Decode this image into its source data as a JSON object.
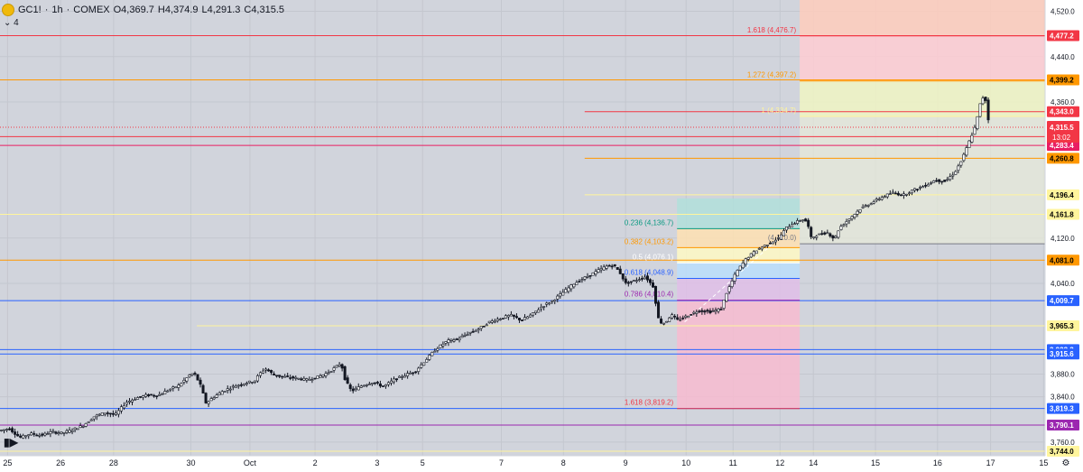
{
  "header": {
    "symbol": "GC1!",
    "interval": "1h",
    "exchange": "COMEX",
    "open": "O4,369.7",
    "high": "H4,374.9",
    "low": "L4,291.3",
    "close": "C4,315.5",
    "indicator_count": "4"
  },
  "countdown": "13:02",
  "chart_data": {
    "type": "candlestick",
    "y_axis": {
      "range": [
        3736,
        4540
      ],
      "ticks": [
        4520,
        4440,
        4360,
        4120,
        4040,
        3880,
        3840,
        3760
      ],
      "tick_labels": [
        "4,520.0",
        "4,440.0",
        "4,360.0",
        "4,120.0",
        "4,040.0",
        "3,880.0",
        "3,840.0",
        "3,760.0"
      ]
    },
    "x_axis": {
      "labels": [
        {
          "text": "25",
          "slot": 5
        },
        {
          "text": "26",
          "slot": 40
        },
        {
          "text": "28",
          "slot": 75
        },
        {
          "text": "30",
          "slot": 126
        },
        {
          "text": "Oct",
          "slot": 165
        },
        {
          "text": "2",
          "slot": 208
        },
        {
          "text": "3",
          "slot": 249
        },
        {
          "text": "5",
          "slot": 279
        },
        {
          "text": "7",
          "slot": 331
        },
        {
          "text": "8",
          "slot": 372
        },
        {
          "text": "9",
          "slot": 413
        },
        {
          "text": "10",
          "slot": 453
        },
        {
          "text": "11",
          "slot": 484
        },
        {
          "text": "12",
          "slot": 515
        },
        {
          "text": "14",
          "slot": 537
        },
        {
          "text": "15",
          "slot": 578
        },
        {
          "text": "16",
          "slot": 619
        },
        {
          "text": "17",
          "slot": 654
        },
        {
          "text": "15",
          "slot": 689
        }
      ],
      "slots": 690
    },
    "price_path": [
      [
        0,
        3780
      ],
      [
        7,
        3784
      ],
      [
        14,
        3768
      ],
      [
        21,
        3775
      ],
      [
        28,
        3772
      ],
      [
        35,
        3778
      ],
      [
        42,
        3776
      ],
      [
        49,
        3782
      ],
      [
        56,
        3790
      ],
      [
        63,
        3805
      ],
      [
        70,
        3812
      ],
      [
        77,
        3808
      ],
      [
        84,
        3830
      ],
      [
        91,
        3838
      ],
      [
        98,
        3843
      ],
      [
        105,
        3842
      ],
      [
        112,
        3852
      ],
      [
        119,
        3860
      ],
      [
        126,
        3878
      ],
      [
        129,
        3882
      ],
      [
        133,
        3862
      ],
      [
        137,
        3828
      ],
      [
        141,
        3838
      ],
      [
        148,
        3850
      ],
      [
        155,
        3858
      ],
      [
        162,
        3864
      ],
      [
        169,
        3868
      ],
      [
        172,
        3880
      ],
      [
        176,
        3890
      ],
      [
        182,
        3878
      ],
      [
        189,
        3875
      ],
      [
        196,
        3873
      ],
      [
        203,
        3870
      ],
      [
        210,
        3874
      ],
      [
        217,
        3882
      ],
      [
        224,
        3895
      ],
      [
        226,
        3900
      ],
      [
        229,
        3868
      ],
      [
        233,
        3850
      ],
      [
        240,
        3860
      ],
      [
        247,
        3866
      ],
      [
        254,
        3858
      ],
      [
        261,
        3870
      ],
      [
        268,
        3878
      ],
      [
        275,
        3885
      ],
      [
        282,
        3905
      ],
      [
        289,
        3925
      ],
      [
        296,
        3938
      ],
      [
        303,
        3942
      ],
      [
        310,
        3952
      ],
      [
        317,
        3960
      ],
      [
        324,
        3972
      ],
      [
        331,
        3978
      ],
      [
        338,
        3984
      ],
      [
        345,
        3975
      ],
      [
        352,
        3985
      ],
      [
        359,
        4000
      ],
      [
        366,
        4010
      ],
      [
        373,
        4025
      ],
      [
        380,
        4040
      ],
      [
        387,
        4050
      ],
      [
        394,
        4060
      ],
      [
        401,
        4070
      ],
      [
        406,
        4072
      ],
      [
        410,
        4060
      ],
      [
        414,
        4040
      ],
      [
        420,
        4045
      ],
      [
        427,
        4052
      ],
      [
        432,
        4035
      ],
      [
        436,
        3972
      ],
      [
        440,
        3970
      ],
      [
        444,
        3985
      ],
      [
        448,
        3975
      ],
      [
        454,
        3982
      ],
      [
        462,
        3992
      ],
      [
        470,
        3990
      ],
      [
        477,
        3995
      ],
      [
        480,
        4020
      ],
      [
        487,
        4060
      ],
      [
        494,
        4085
      ],
      [
        501,
        4100
      ],
      [
        508,
        4110
      ],
      [
        515,
        4120
      ],
      [
        520,
        4138
      ],
      [
        524,
        4145
      ],
      [
        528,
        4150
      ],
      [
        531,
        4153
      ],
      [
        534,
        4148
      ],
      [
        536,
        4120
      ],
      [
        540,
        4125
      ],
      [
        547,
        4130
      ],
      [
        552,
        4118
      ],
      [
        555,
        4138
      ],
      [
        562,
        4155
      ],
      [
        569,
        4172
      ],
      [
        576,
        4182
      ],
      [
        583,
        4192
      ],
      [
        590,
        4200
      ],
      [
        597,
        4196
      ],
      [
        604,
        4205
      ],
      [
        611,
        4212
      ],
      [
        618,
        4222
      ],
      [
        625,
        4220
      ],
      [
        631,
        4235
      ],
      [
        636,
        4258
      ],
      [
        641,
        4292
      ],
      [
        645,
        4318
      ],
      [
        648,
        4356
      ],
      [
        650,
        4369
      ],
      [
        652,
        4362
      ],
      [
        654,
        4315
      ]
    ],
    "horizontal_levels": [
      {
        "price": 4477.2,
        "label": "4,477.2",
        "color": "#f23645",
        "text_color": "#ffffff"
      },
      {
        "price": 4399.2,
        "label": "4,399.2",
        "color": "#ff9800",
        "text_color": "#000000"
      },
      {
        "price": 4343.0,
        "label": "4,343.0",
        "color": "#f23645",
        "text_color": "#ffffff",
        "from": 386
      },
      {
        "price": 4299.0,
        "label": "4,299.0",
        "color": "#f23645",
        "text_color": "#ffffff"
      },
      {
        "price": 4283.4,
        "label": "4,283.4",
        "color": "#e91e63",
        "text_color": "#ffffff"
      },
      {
        "price": 4260.8,
        "label": "4,260.8",
        "color": "#ff9800",
        "text_color": "#000000",
        "from": 386
      },
      {
        "price": 4196.4,
        "label": "4,196.4",
        "color": "#fff59d",
        "text_color": "#000000",
        "from": 386
      },
      {
        "price": 4161.8,
        "label": "4,161.8",
        "color": "#fff59d",
        "text_color": "#000000"
      },
      {
        "price": 4081.0,
        "label": "4,081.0",
        "color": "#ff9800",
        "text_color": "#000000"
      },
      {
        "price": 4009.7,
        "label": "4,009.7",
        "color": "#2962ff",
        "text_color": "#ffffff"
      },
      {
        "price": 3965.3,
        "label": "3,965.3",
        "color": "#fff59d",
        "text_color": "#000000",
        "from": 130
      },
      {
        "price": 3923.3,
        "label": "3,923.3",
        "color": "#2962ff",
        "text_color": "#ffffff"
      },
      {
        "price": 3915.6,
        "label": "3,915.6",
        "color": "#2962ff",
        "text_color": "#ffffff"
      },
      {
        "price": 3819.3,
        "label": "3,819.3",
        "color": "#2962ff",
        "text_color": "#ffffff"
      },
      {
        "price": 3790.1,
        "label": "3,790.1",
        "color": "#9c27b0",
        "text_color": "#ffffff"
      },
      {
        "price": 3744.0,
        "label": "3,744.0",
        "color": "#fff59d",
        "text_color": "#000000"
      }
    ],
    "current_price": {
      "price": 4315.5,
      "label": "4,315.5",
      "color": "#f23645"
    },
    "fib_left": {
      "x_from": 447,
      "x_to": 528,
      "levels": [
        {
          "ratio": "0.236",
          "price": 4136.7,
          "label": "0.236 (4,136.7)",
          "color": "#089981",
          "fill": "#b2dfdb"
        },
        {
          "ratio": "0.382",
          "price": 4103.2,
          "label": "0.382 (4,103.2)",
          "color": "#ff9800",
          "fill": "#ffe0b2"
        },
        {
          "ratio": "0.5",
          "price": 4076.1,
          "label": "0.5 (4,076.1)",
          "color": "#ffffff",
          "fill": "#fff9c4"
        },
        {
          "ratio": "0.618",
          "price": 4048.9,
          "label": "0.618 (4,048.9)",
          "color": "#2962ff",
          "fill": "#bbdefb"
        },
        {
          "ratio": "0.786",
          "price": 4010.4,
          "label": "0.786 (4,010.4)",
          "color": "#9c27b0",
          "fill": "#e1bee7"
        },
        {
          "ratio": "1.618",
          "price": 3819.2,
          "label": "1.618 (3,819.2)",
          "color": "#f23645",
          "fill": "#f8bbd0"
        }
      ],
      "top_price": 4190
    },
    "fib_right": {
      "x_from": 528,
      "x_to": 690,
      "levels": [
        {
          "ratio": "1.618",
          "price": 4476.7,
          "label": "1.618 (4,476.7)",
          "color": "#f23645",
          "fill": "#ffccbc"
        },
        {
          "ratio": "1.272",
          "price": 4397.2,
          "label": "1.272 (4,397.2)",
          "color": "#ff9800",
          "fill": "#ffcdd2"
        },
        {
          "ratio": "1",
          "price": 4334.7,
          "label": "1 (4,334.7)",
          "color": "#fff59d",
          "fill": "#f0f4c3"
        }
      ],
      "top_price": 4540,
      "bottom_price": 4110
    },
    "marker_label": "(4,110.0)"
  }
}
